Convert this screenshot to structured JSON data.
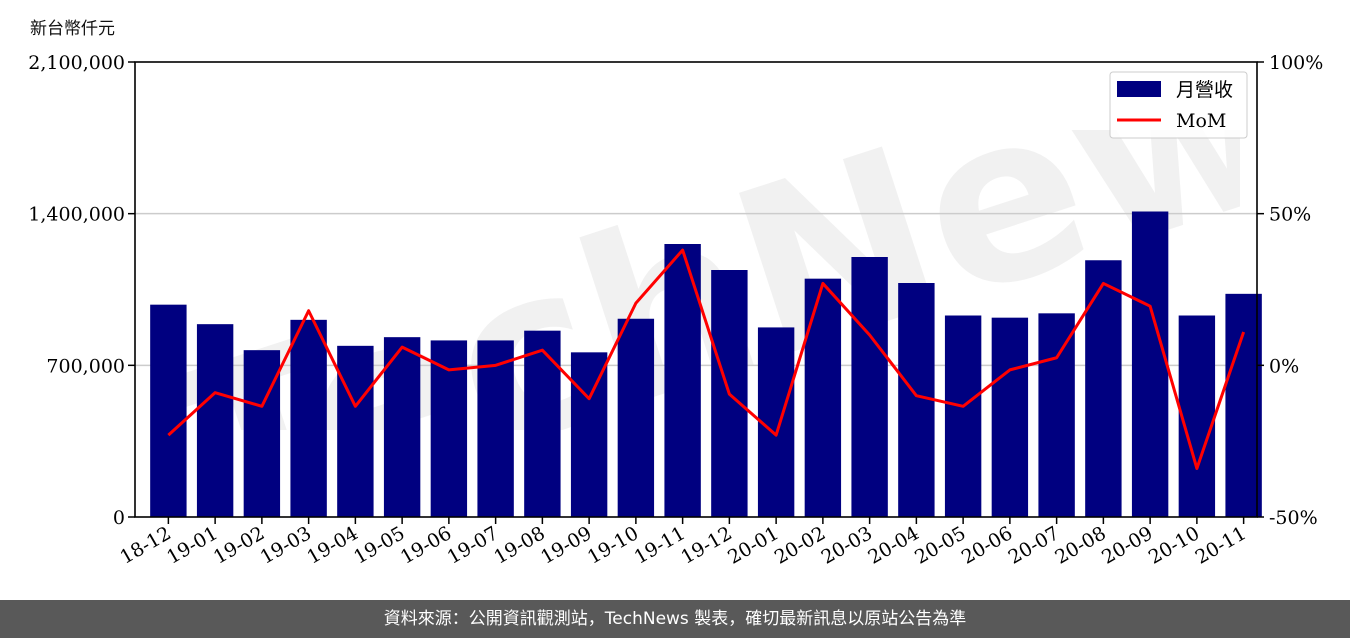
{
  "unit_label": "新台幣仟元",
  "footer": "資料來源：公開資訊觀測站，TechNews 製表，確切最新訊息以原站公告為準",
  "watermark": "TechNews",
  "colors": {
    "bar": "#000080",
    "line": "#ff0000",
    "footer_bg": "#595959",
    "grid": "#cccccc"
  },
  "chart_data": {
    "type": "bar",
    "categories": [
      "18-12",
      "19-01",
      "19-02",
      "19-03",
      "19-04",
      "19-05",
      "19-06",
      "19-07",
      "19-08",
      "19-09",
      "19-10",
      "19-11",
      "19-12",
      "20-01",
      "20-02",
      "20-03",
      "20-04",
      "20-05",
      "20-06",
      "20-07",
      "20-08",
      "20-09",
      "20-10",
      "20-11"
    ],
    "series": [
      {
        "name": "月營收",
        "type": "bar",
        "axis": "left",
        "values": [
          980000,
          890000,
          770000,
          910000,
          790000,
          830000,
          815000,
          815000,
          860000,
          760000,
          915000,
          1260000,
          1140000,
          875000,
          1100000,
          1200000,
          1080000,
          930000,
          920000,
          940000,
          1185000,
          1410000,
          930000,
          1030000
        ]
      },
      {
        "name": "MoM",
        "type": "line",
        "axis": "right",
        "values": [
          -23,
          -9,
          -13.5,
          18,
          -13.5,
          6,
          -1.5,
          0,
          5,
          -11,
          20.5,
          38,
          -9.5,
          -23,
          27,
          10,
          -10,
          -13.5,
          -1.5,
          2.5,
          27,
          19.5,
          -34,
          11
        ]
      }
    ],
    "y_left": {
      "ylim": [
        0,
        2100000
      ],
      "ticks": [
        "0",
        "700,000",
        "1,400,000",
        "2,100,000"
      ],
      "tick_values": [
        0,
        700000,
        1400000,
        2100000
      ]
    },
    "y_right": {
      "ylim": [
        -50,
        100
      ],
      "ticks": [
        "-50%",
        "0%",
        "50%",
        "100%"
      ],
      "tick_values": [
        -50,
        0,
        50,
        100
      ]
    },
    "legend": "top-right",
    "grid": "horizontal"
  }
}
